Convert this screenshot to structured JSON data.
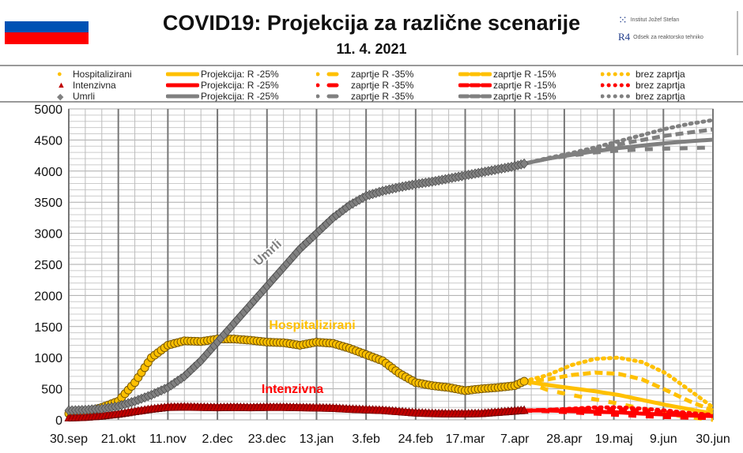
{
  "header": {
    "title": "COVID19: Projekcija za različne scenarije",
    "date": "11. 4. 2021",
    "logo_ijs": "Institut Jožef Stefan",
    "logo_r4": "Odsek za reaktorsko tehniko",
    "logo_r4_mark": "R4"
  },
  "legend": {
    "rows": [
      {
        "name": "Hospitalizirani",
        "color": "#FFC000",
        "marker": "circle",
        "items": [
          "Projekcija: R -25%",
          "zaprtje R -35%",
          "zaprtje R -15%",
          "brez zaprtja"
        ]
      },
      {
        "name": "Intenzivna",
        "color": "#FF0000",
        "marker": "triangle",
        "items": [
          "Projekcija: R -25%",
          "zaprtje R -35%",
          "zaprtje R -15%",
          "brez zaprtja"
        ]
      },
      {
        "name": "Umrli",
        "color": "#808080",
        "marker": "diamond",
        "items": [
          "Projekcija: R -25%",
          "zaprtje R -35%",
          "zaprtje R -15%",
          "brez zaprtja"
        ]
      }
    ]
  },
  "chart_data": {
    "type": "line",
    "title": "COVID19: Projekcija za različne scenarije",
    "x_unit": "days since 30.sep 2020",
    "xlim": [
      0,
      273
    ],
    "ylim": [
      0,
      5000
    ],
    "yticks": [
      0,
      500,
      1000,
      1500,
      2000,
      2500,
      3000,
      3500,
      4000,
      4500,
      5000
    ],
    "xticks": [
      {
        "day": 0,
        "label": "30.sep"
      },
      {
        "day": 21,
        "label": "21.okt"
      },
      {
        "day": 42,
        "label": "11.nov"
      },
      {
        "day": 63,
        "label": "2.dec"
      },
      {
        "day": 84,
        "label": "23.dec"
      },
      {
        "day": 105,
        "label": "13.jan"
      },
      {
        "day": 126,
        "label": "3.feb"
      },
      {
        "day": 147,
        "label": "24.feb"
      },
      {
        "day": 168,
        "label": "17.mar"
      },
      {
        "day": 189,
        "label": "7.apr"
      },
      {
        "day": 210,
        "label": "28.apr"
      },
      {
        "day": 231,
        "label": "19.maj"
      },
      {
        "day": 252,
        "label": "9.jun"
      },
      {
        "day": 273,
        "label": "30.jun"
      }
    ],
    "grid": true,
    "observed_days": [
      0,
      7,
      14,
      21,
      28,
      35,
      42,
      49,
      56,
      63,
      70,
      77,
      84,
      91,
      98,
      105,
      112,
      119,
      126,
      133,
      140,
      147,
      154,
      161,
      168,
      175,
      182,
      189,
      193
    ],
    "observed": [
      {
        "name": "Hospitalizirani",
        "color": "#FFC000",
        "marker": "circle",
        "values": [
          100,
          120,
          200,
          300,
          600,
          1000,
          1200,
          1270,
          1260,
          1300,
          1300,
          1280,
          1250,
          1240,
          1200,
          1250,
          1230,
          1150,
          1050,
          950,
          750,
          600,
          550,
          520,
          470,
          500,
          520,
          550,
          620
        ]
      },
      {
        "name": "Intenzivna",
        "color": "#C00000",
        "marker": "triangle",
        "values": [
          30,
          40,
          60,
          90,
          130,
          170,
          200,
          205,
          200,
          195,
          200,
          195,
          200,
          200,
          195,
          190,
          185,
          170,
          160,
          150,
          130,
          110,
          100,
          95,
          95,
          100,
          120,
          140,
          150
        ]
      },
      {
        "name": "Umrli",
        "color": "#808080",
        "marker": "diamond",
        "values": [
          150,
          160,
          180,
          220,
          300,
          400,
          520,
          700,
          950,
          1250,
          1550,
          1850,
          2150,
          2450,
          2750,
          3000,
          3250,
          3450,
          3600,
          3680,
          3740,
          3790,
          3830,
          3880,
          3930,
          3980,
          4030,
          4080,
          4120
        ]
      }
    ],
    "projection_days": [
      193,
      203,
      213,
      223,
      233,
      243,
      253,
      263,
      273
    ],
    "projections": [
      {
        "group": "Hospitalizirani",
        "color": "#FFC000",
        "scenarios": {
          "R-25": [
            620,
            560,
            510,
            460,
            400,
            320,
            240,
            170,
            100
          ],
          "R-35": [
            620,
            480,
            400,
            330,
            260,
            180,
            100,
            40,
            0
          ],
          "R-15": [
            620,
            650,
            720,
            760,
            740,
            650,
            480,
            300,
            150
          ],
          "brez": [
            620,
            720,
            880,
            980,
            1000,
            930,
            750,
            480,
            200
          ]
        }
      },
      {
        "group": "Intenzivna",
        "color": "#FF0000",
        "scenarios": {
          "R-25": [
            150,
            150,
            140,
            130,
            120,
            100,
            85,
            70,
            60
          ],
          "R-35": [
            150,
            140,
            120,
            100,
            80,
            60,
            45,
            35,
            30
          ],
          "R-15": [
            150,
            160,
            170,
            180,
            170,
            150,
            120,
            90,
            70
          ],
          "brez": [
            150,
            160,
            180,
            200,
            200,
            180,
            150,
            110,
            80
          ]
        }
      },
      {
        "group": "Umrli",
        "color": "#808080",
        "scenarios": {
          "R-25": [
            4120,
            4200,
            4260,
            4320,
            4370,
            4410,
            4450,
            4480,
            4505
          ],
          "R-35": [
            4120,
            4200,
            4250,
            4300,
            4330,
            4350,
            4360,
            4370,
            4380
          ],
          "R-15": [
            4120,
            4200,
            4270,
            4350,
            4430,
            4500,
            4570,
            4620,
            4670
          ],
          "brez": [
            4120,
            4210,
            4290,
            4380,
            4480,
            4580,
            4680,
            4760,
            4820
          ]
        }
      }
    ],
    "annotations": [
      {
        "text": "Umrli",
        "color": "#808080"
      },
      {
        "text": "Hospitalizirani",
        "color": "#FFC000"
      },
      {
        "text": "Intenzivna",
        "color": "#FF0000"
      }
    ]
  }
}
